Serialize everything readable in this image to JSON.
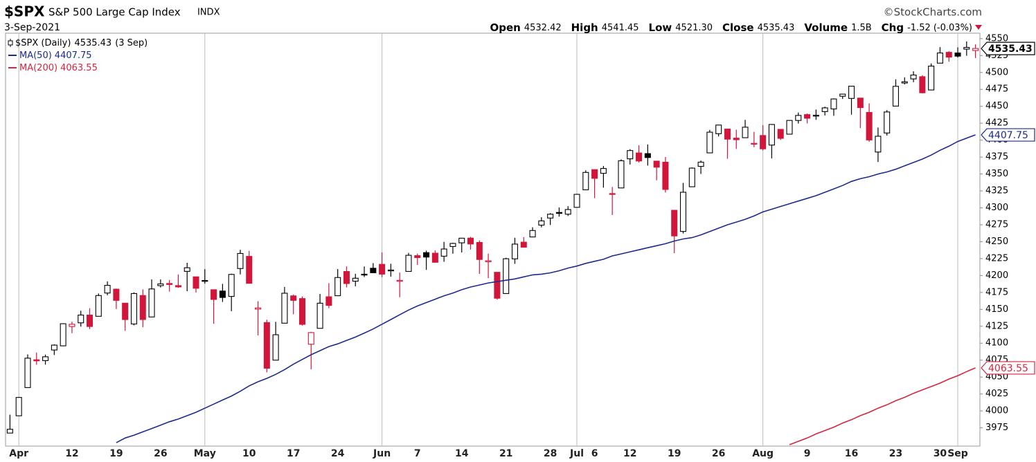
{
  "chart_data": {
    "type": "candlestick",
    "header": {
      "ticker": "$SPX",
      "name": "S&P 500 Large Cap Index",
      "exchange": "INDX",
      "source": "©StockCharts.com",
      "date": "3-Sep-2021",
      "stats": [
        {
          "label": "Open",
          "value": "4532.42"
        },
        {
          "label": "High",
          "value": "4541.45"
        },
        {
          "label": "Low",
          "value": "4521.30"
        },
        {
          "label": "Close",
          "value": "4535.43"
        },
        {
          "label": "Volume",
          "value": "1.5B"
        },
        {
          "label": "Chg",
          "value": "-1.52 (-0.03%)"
        }
      ],
      "legend_title": "$SPX (Daily)",
      "legend_date": "(3 Sep)"
    },
    "categories": [
      null,
      "Apr",
      null,
      null,
      null,
      null,
      null,
      "12",
      null,
      null,
      null,
      null,
      "19",
      null,
      null,
      null,
      null,
      "26",
      null,
      null,
      null,
      null,
      "May",
      null,
      null,
      null,
      null,
      "10",
      null,
      null,
      null,
      null,
      "17",
      null,
      null,
      null,
      null,
      "24",
      null,
      null,
      null,
      null,
      "Jun",
      null,
      null,
      null,
      "7",
      null,
      null,
      null,
      null,
      "14",
      null,
      null,
      null,
      null,
      "21",
      null,
      null,
      null,
      null,
      "28",
      null,
      null,
      "Jul",
      null,
      "6",
      null,
      null,
      null,
      "12",
      null,
      null,
      null,
      null,
      "19",
      null,
      null,
      null,
      null,
      "26",
      null,
      null,
      null,
      null,
      "Aug",
      null,
      null,
      null,
      null,
      "9",
      null,
      null,
      null,
      null,
      "16",
      null,
      null,
      null,
      null,
      "23",
      null,
      null,
      null,
      null,
      "30",
      null,
      "Sep",
      null,
      null
    ],
    "ohlc": {
      "open": [
        3967.25,
        3992.78,
        4034.44,
        4075.57,
        4074.29,
        4089.95,
        4096.11,
        4124.71,
        4130.1,
        4141.58,
        4139.76,
        4174.14,
        4179.8,
        4159.18,
        4128.42,
        4170.46,
        4138.78,
        4185.03,
        4188.25,
        4185.14,
        4206.14,
        4198.1,
        4191.98,
        4179.04,
        4177.06,
        4169.14,
        4210.34,
        4228.29,
        4150.34,
        4130.55,
        4074.99,
        4129.58,
        4169.92,
        4165.94,
        4098.45,
        4121.97,
        4168.61,
        4170.16,
        4205.94,
        4191.59,
        4201.94,
        4210.77,
        4216.52,
        4206.82,
        4191.43,
        4206.05,
        4229.34,
        4233.81,
        4232.99,
        4228.56,
        4242.9,
        4248.31,
        4255.28,
        4248.87,
        4220.37,
        4204.78,
        4173.4,
        4224.61,
        4249.27,
        4256.97,
        4274.45,
        4284.9,
        4293.21,
        4290.65,
        4300.73,
        4326.6,
        4356.46,
        4351.01,
        4321.07,
        4329.38,
        4372.41,
        4381.07,
        4380.11,
        4369.02,
        4367.43,
        4296.4,
        4265.11,
        4331.13,
        4361.27,
        4381.2,
        4409.58,
        4416.38,
        4402.95,
        4403.59,
        4395.12,
        4406.86,
        4392.74,
        4415.95,
        4408.86,
        4429.07,
        4437.77,
        4435.79,
        4442.18,
        4446.08,
        4464.84,
        4461.65,
        4462.12,
        4440.94,
        4382.44,
        4410.56,
        4450.29,
        4484.4,
        4490.45,
        4493.75,
        4474.1,
        4513.76,
        4529.75,
        4528.8,
        4534.48,
        4532.42
      ],
      "high": [
        3994.41,
        4020.63,
        4083.42,
        4086.23,
        4083.13,
        4098.19,
        4129.48,
        4131.76,
        4148.0,
        4151.69,
        4173.49,
        4191.31,
        4180.81,
        4159.18,
        4175.02,
        4179.57,
        4194.17,
        4194.19,
        4193.35,
        4201.53,
        4218.78,
        4198.1,
        4209.39,
        4179.04,
        4187.72,
        4202.7,
        4238.04,
        4236.39,
        4162.04,
        4134.73,
        4131.58,
        4183.13,
        4171.92,
        4169.15,
        4116.93,
        4172.8,
        4188.72,
        4209.52,
        4213.42,
        4202.61,
        4213.38,
        4218.36,
        4234.12,
        4217.37,
        4204.39,
        4233.45,
        4232.34,
        4236.74,
        4237.09,
        4249.74,
        4248.38,
        4255.59,
        4257.16,
        4251.89,
        4232.29,
        4204.78,
        4226.24,
        4255.84,
        4256.6,
        4271.28,
        4286.12,
        4292.14,
        4300.52,
        4302.43,
        4320.66,
        4355.43,
        4356.46,
        4361.88,
        4330.88,
        4371.6,
        4386.68,
        4392.37,
        4393.68,
        4369.02,
        4375.09,
        4296.4,
        4336.84,
        4359.7,
        4369.87,
        4415.18,
        4422.73,
        4416.38,
        4415.47,
        4429.97,
        4412.25,
        4422.18,
        4423.79,
        4416.17,
        4429.76,
        4440.82,
        4439.39,
        4445.21,
        4449.44,
        4461.77,
        4468.37,
        4480.26,
        4462.12,
        4454.32,
        4418.61,
        4444.35,
        4489.88,
        4492.81,
        4501.71,
        4495.9,
        4513.33,
        4537.36,
        4531.39,
        4537.11,
        4545.85,
        4541.45
      ],
      "low": [
        3966.98,
        3992.78,
        4034.44,
        4068.14,
        4068.31,
        4082.54,
        4095.51,
        4114.82,
        4124.43,
        4120.87,
        4139.76,
        4170.75,
        4150.47,
        4118.38,
        4126.35,
        4123.69,
        4138.78,
        4182.36,
        4176.22,
        4181.78,
        4176.81,
        4174.85,
        4188.03,
        4128.59,
        4160.94,
        4147.33,
        4201.64,
        4188.13,
        4111.53,
        4056.88,
        4074.99,
        4129.58,
        4142.69,
        4125.99,
        4061.41,
        4121.97,
        4151.72,
        4170.16,
        4182.52,
        4184.11,
        4197.78,
        4203.57,
        4197.59,
        4198.27,
        4167.93,
        4206.05,
        4215.66,
        4208.41,
        4218.74,
        4220.34,
        4232.25,
        4234.07,
        4238.35,
        4202.45,
        4196.05,
        4164.4,
        4173.4,
        4217.27,
        4241.43,
        4256.97,
        4271.16,
        4274.67,
        4287.04,
        4287.96,
        4300.73,
        4326.6,
        4314.37,
        4329.79,
        4289.37,
        4329.38,
        4364.03,
        4366.92,
        4362.36,
        4340.7,
        4322.53,
        4233.13,
        4262.05,
        4331.13,
        4350.06,
        4381.2,
        4405.45,
        4372.51,
        4387.01,
        4403.59,
        4389.65,
        4384.81,
        4373.0,
        4400.23,
        4408.86,
        4424.48,
        4424.74,
        4430.03,
        4436.42,
        4435.96,
        4460.82,
        4437.66,
        4417.83,
        4397.59,
        4367.73,
        4406.8,
        4450.29,
        4482.28,
        4485.66,
        4468.99,
        4474.1,
        4513.76,
        4515.8,
        4522.02,
        4524.66,
        4521.3
      ],
      "close": [
        3972.89,
        4019.87,
        4077.91,
        4073.94,
        4079.95,
        4097.17,
        4128.8,
        4127.99,
        4141.59,
        4124.66,
        4170.42,
        4185.47,
        4163.26,
        4134.94,
        4173.42,
        4134.98,
        4180.17,
        4187.62,
        4186.72,
        4183.18,
        4211.47,
        4181.17,
        4192.66,
        4164.66,
        4167.59,
        4201.62,
        4232.6,
        4188.43,
        4152.1,
        4063.04,
        4112.5,
        4173.85,
        4163.29,
        4127.83,
        4115.68,
        4159.12,
        4155.86,
        4197.05,
        4188.13,
        4195.99,
        4200.88,
        4204.11,
        4202.04,
        4208.12,
        4192.85,
        4229.89,
        4226.52,
        4227.26,
        4219.55,
        4239.18,
        4247.44,
        4255.15,
        4246.59,
        4223.7,
        4221.86,
        4166.45,
        4224.79,
        4246.44,
        4241.84,
        4266.49,
        4280.7,
        4290.61,
        4291.8,
        4297.5,
        4319.94,
        4352.34,
        4343.54,
        4358.13,
        4320.82,
        4369.55,
        4384.63,
        4369.21,
        4374.3,
        4360.03,
        4327.16,
        4258.49,
        4323.06,
        4358.69,
        4367.48,
        4411.79,
        4422.3,
        4401.46,
        4400.64,
        4419.15,
        4395.26,
        4387.16,
        4423.15,
        4402.66,
        4429.1,
        4436.52,
        4432.35,
        4436.75,
        4447.7,
        4460.83,
        4468.0,
        4479.71,
        4448.08,
        4400.27,
        4405.8,
        4441.67,
        4479.53,
        4486.23,
        4496.19,
        4470.0,
        4509.37,
        4528.79,
        4522.68,
        4524.09,
        4536.95,
        4535.43
      ]
    },
    "up_color": "#000000",
    "down_color": "#d2163b",
    "series": [
      {
        "name": "MA(50)",
        "color": "#1c2a8f",
        "values": [
          null,
          null,
          null,
          null,
          null,
          null,
          null,
          null,
          null,
          null,
          null,
          null,
          3953,
          3960,
          3964,
          3969,
          3974,
          3979,
          3984,
          3988,
          3993,
          3998,
          4004,
          4010,
          4016,
          4022,
          4029,
          4037,
          4043,
          4048,
          4054,
          4061,
          4069,
          4076,
          4083,
          4089,
          4095,
          4099,
          4104,
          4109,
          4115,
          4121,
          4128,
          4135,
          4142,
          4149,
          4155,
          4160,
          4165,
          4170,
          4174,
          4179,
          4183,
          4186,
          4189,
          4191,
          4193,
          4195,
          4198,
          4201,
          4202,
          4204,
          4207,
          4211,
          4214,
          4218,
          4221,
          4224,
          4229,
          4232,
          4235,
          4238,
          4241,
          4244,
          4247,
          4251,
          4254,
          4256,
          4260,
          4265,
          4270,
          4275,
          4279,
          4283,
          4288,
          4294,
          4298,
          4302,
          4306,
          4310,
          4314,
          4318,
          4323,
          4328,
          4333,
          4339,
          4343,
          4346,
          4350,
          4353,
          4357,
          4362,
          4367,
          4372,
          4378,
          4385,
          4391,
          4398,
          4403,
          4407.75
        ]
      },
      {
        "name": "MA(200)",
        "color": "#d5253f",
        "values": [
          null,
          null,
          null,
          null,
          null,
          null,
          null,
          null,
          null,
          null,
          null,
          null,
          null,
          null,
          null,
          null,
          null,
          null,
          null,
          null,
          null,
          null,
          null,
          null,
          null,
          null,
          null,
          null,
          null,
          null,
          null,
          null,
          null,
          null,
          null,
          null,
          null,
          null,
          null,
          null,
          null,
          null,
          null,
          null,
          null,
          null,
          null,
          null,
          null,
          null,
          null,
          null,
          null,
          null,
          null,
          null,
          null,
          null,
          null,
          null,
          null,
          null,
          null,
          null,
          null,
          null,
          null,
          null,
          null,
          null,
          null,
          null,
          null,
          null,
          null,
          null,
          null,
          null,
          null,
          null,
          null,
          null,
          null,
          null,
          null,
          null,
          null,
          null,
          3950,
          3955,
          3960,
          3966,
          3971,
          3976,
          3982,
          3987,
          3993,
          3998,
          4004,
          4009,
          4015,
          4020,
          4026,
          4031,
          4036,
          4041,
          4047,
          4052,
          4058,
          4063.55
        ]
      }
    ],
    "ylim": [
      3948,
      4558
    ],
    "yticks": [
      3975,
      4000,
      4025,
      4050,
      4075,
      4100,
      4125,
      4150,
      4175,
      4200,
      4225,
      4250,
      4275,
      4300,
      4325,
      4350,
      4375,
      4400,
      4425,
      4450,
      4475,
      4500,
      4525,
      4550
    ],
    "grid": false
  }
}
